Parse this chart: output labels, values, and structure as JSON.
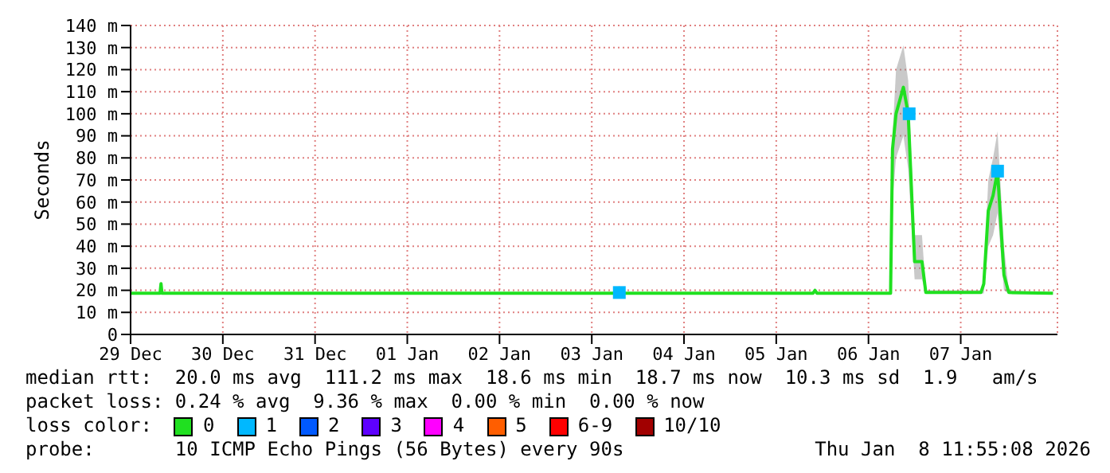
{
  "chart_data": {
    "type": "line",
    "ylabel": "Seconds",
    "xlim": [
      "2025-12-29",
      "2026-01-08T01:10"
    ],
    "xticks": [
      {
        "value": "2025-12-29",
        "label": "29 Dec"
      },
      {
        "value": "2025-12-30",
        "label": "30 Dec"
      },
      {
        "value": "2025-12-31",
        "label": "31 Dec"
      },
      {
        "value": "2026-01-01",
        "label": "01 Jan"
      },
      {
        "value": "2026-01-02",
        "label": "02 Jan"
      },
      {
        "value": "2026-01-03",
        "label": "03 Jan"
      },
      {
        "value": "2026-01-04",
        "label": "04 Jan"
      },
      {
        "value": "2026-01-05",
        "label": "05 Jan"
      },
      {
        "value": "2026-01-06",
        "label": "06 Jan"
      },
      {
        "value": "2026-01-07",
        "label": "07 Jan"
      }
    ],
    "ylim": [
      0,
      140
    ],
    "yticks": [
      {
        "value": 0,
        "label": "0"
      },
      {
        "value": 10,
        "label": "10 m"
      },
      {
        "value": 20,
        "label": "20 m"
      },
      {
        "value": 30,
        "label": "30 m"
      },
      {
        "value": 40,
        "label": "40 m"
      },
      {
        "value": 50,
        "label": "50 m"
      },
      {
        "value": 60,
        "label": "60 m"
      },
      {
        "value": 70,
        "label": "70 m"
      },
      {
        "value": 80,
        "label": "80 m"
      },
      {
        "value": 90,
        "label": "90 m"
      },
      {
        "value": 100,
        "label": "100 m"
      },
      {
        "value": 110,
        "label": "110 m"
      },
      {
        "value": 120,
        "label": "120 m"
      },
      {
        "value": 130,
        "label": "130 m"
      },
      {
        "value": 140,
        "label": "140 m"
      }
    ],
    "grid": true,
    "legend": "bottom",
    "legend_title": "loss color:",
    "series": [
      {
        "name": "0",
        "color": "#20e020",
        "x": [
          "2025-12-29T00:00",
          "2025-12-29T07:40",
          "2025-12-29T07:55",
          "2025-12-29T08:10",
          "2026-01-03T06:40",
          "2026-01-03T07:10",
          "2026-01-03T07:40",
          "2026-01-05T09:35",
          "2026-01-05T10:05",
          "2026-01-05T10:35",
          "2026-01-06T05:45",
          "2026-01-06T06:15",
          "2026-01-06T07:10",
          "2026-01-06T09:05",
          "2026-01-06T10:20",
          "2026-01-06T12:00",
          "2026-01-06T13:55",
          "2026-01-06T14:55",
          "2026-01-07T05:15",
          "2026-01-07T06:00",
          "2026-01-07T07:10",
          "2026-01-07T08:25",
          "2026-01-07T09:35",
          "2026-01-07T11:15",
          "2026-01-07T12:30",
          "2026-01-08T00:00"
        ],
        "values": [
          18.7,
          18.7,
          23,
          18.7,
          18.7,
          21,
          18.7,
          18.7,
          20,
          18.7,
          18.7,
          84,
          100,
          112,
          100,
          33,
          33,
          19,
          19,
          23,
          56,
          63,
          74,
          27,
          19,
          18.7
        ],
        "lower": [
          18.6,
          18.6,
          18.6,
          18.6,
          18.6,
          18.6,
          18.6,
          18.6,
          18.6,
          18.6,
          18.6,
          60,
          80,
          90,
          75,
          25,
          25,
          18.6,
          18.6,
          18.6,
          40,
          45,
          55,
          20,
          18.6,
          18.6
        ],
        "upper": [
          19,
          19,
          24,
          19,
          19,
          22,
          19,
          19,
          21,
          19,
          19,
          90,
          120,
          131,
          115,
          45,
          45,
          20,
          20,
          25,
          70,
          80,
          92,
          40,
          20,
          19
        ]
      },
      {
        "name": "1",
        "color": "#00b8ff",
        "type": "scatter",
        "x": [
          "2026-01-03T07:10",
          "2026-01-06T10:35",
          "2026-01-07T09:35"
        ],
        "values": [
          19,
          100,
          74
        ]
      },
      {
        "name": "2",
        "color": "#0059ff",
        "type": "scatter"
      },
      {
        "name": "3",
        "color": "#5e00ff",
        "type": "scatter"
      },
      {
        "name": "4",
        "color": "#ff00ff",
        "type": "scatter"
      },
      {
        "name": "5",
        "color": "#ff5e00",
        "type": "scatter"
      },
      {
        "name": "6-9",
        "color": "#ff0000",
        "type": "scatter"
      },
      {
        "name": "10/10",
        "color": "#a10000",
        "type": "scatter"
      }
    ],
    "annotations": [
      "median rtt:  20.0 ms avg  111.2 ms max  18.6 ms min  18.7 ms now  10.3 ms sd  1.9   am/s",
      "packet loss: 0.24 % avg  9.36 % max  0.00 % min  0.00 % now",
      "probe:       10 ICMP Echo Pings (56 Bytes) every 90s",
      "Thu Jan  8 11:55:08 2026"
    ]
  }
}
